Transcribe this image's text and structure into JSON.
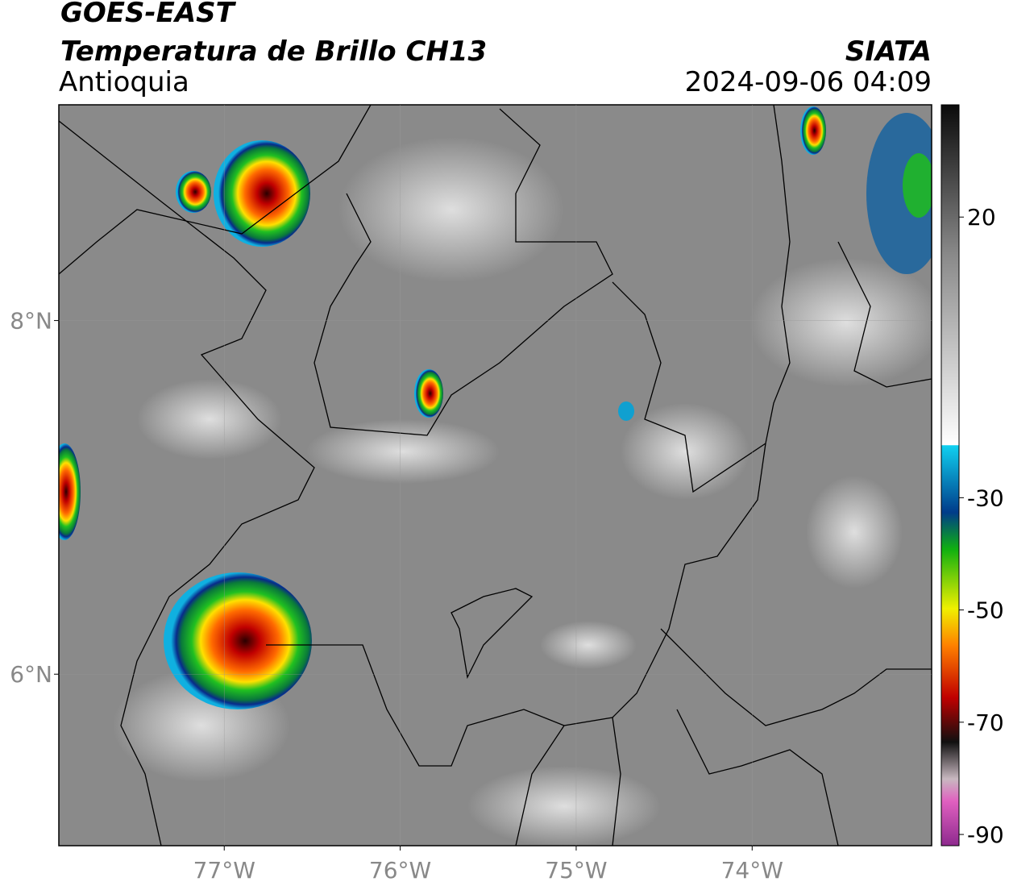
{
  "header": {
    "satellite": "GOES-EAST",
    "product": "Temperatura de Brillo CH13",
    "region": "Antioquia",
    "source": "SIATA",
    "datetime": "2024-09-06 04:09"
  },
  "map": {
    "xlim": [
      -77.94,
      -72.98
    ],
    "ylim": [
      5.03,
      9.22
    ],
    "xticks": [
      {
        "value": -77,
        "label": "77°W"
      },
      {
        "value": -76,
        "label": "76°W"
      },
      {
        "value": -75,
        "label": "75°W"
      },
      {
        "value": -74,
        "label": "74°W"
      }
    ],
    "yticks": [
      {
        "value": 8,
        "label": "8°N"
      },
      {
        "value": 6,
        "label": "6°N"
      }
    ],
    "grid": true
  },
  "colorbar": {
    "lim": [
      -92,
      40
    ],
    "ticks": [
      20,
      -30,
      -50,
      -70,
      -90
    ]
  }
}
